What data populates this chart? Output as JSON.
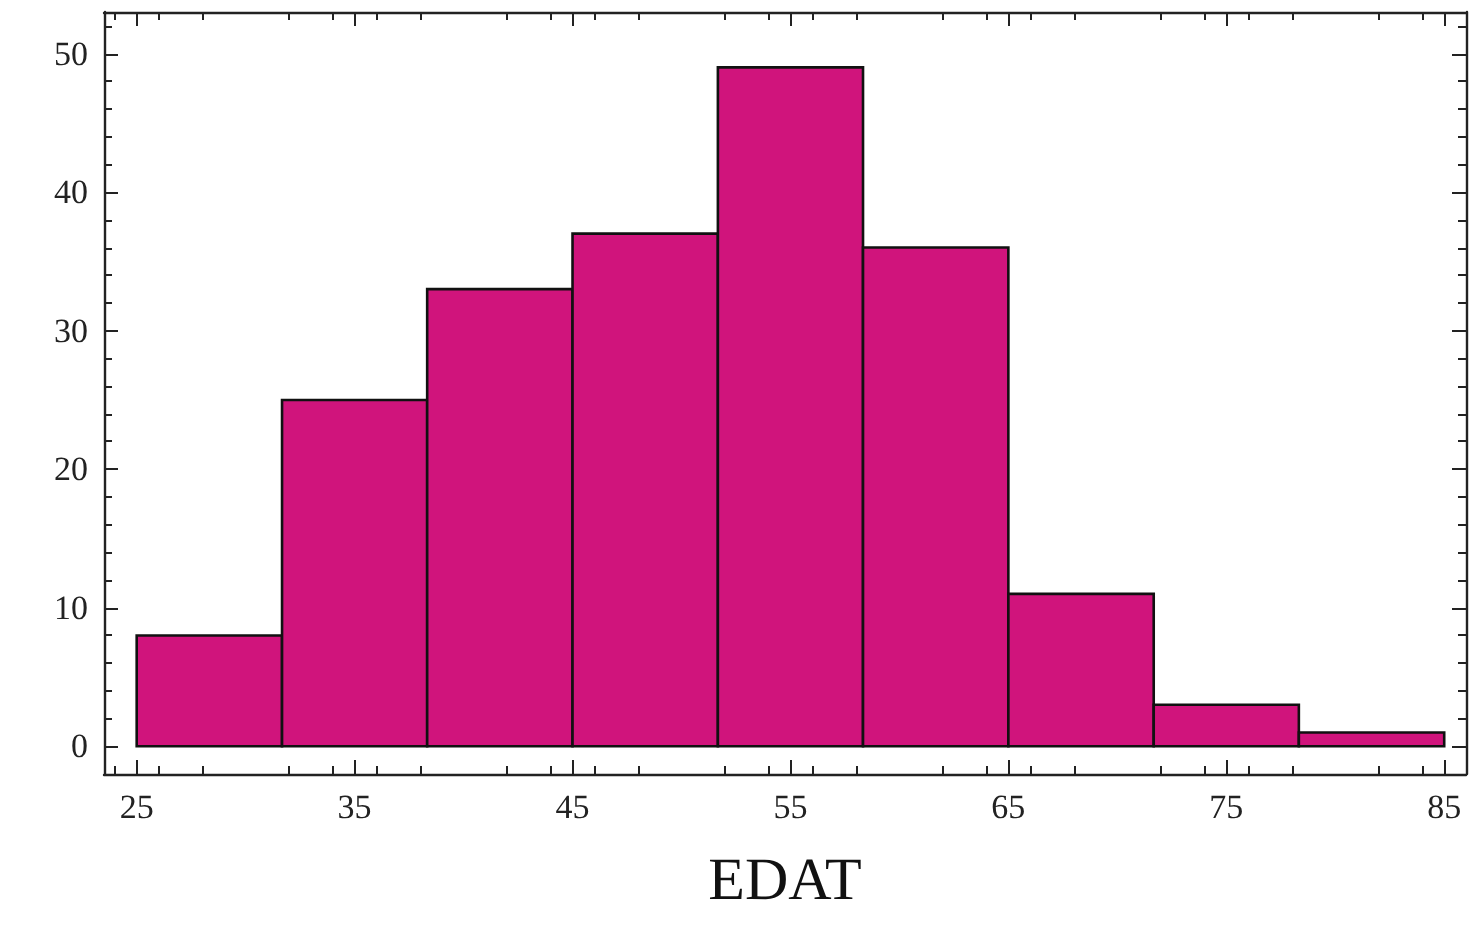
{
  "chart_data": {
    "type": "histogram",
    "xlabel": "EDAT",
    "bins": [
      25,
      31.67,
      38.33,
      45,
      51.67,
      58.33,
      65,
      71.67,
      78.33,
      85
    ],
    "values": [
      8,
      25,
      33,
      37,
      49,
      36,
      11,
      3,
      1
    ],
    "color": "#d0147c",
    "xlim": [
      23.5,
      86
    ],
    "xticks": [
      25,
      35,
      45,
      55,
      65,
      75,
      85
    ],
    "ylim": [
      -2,
      53
    ],
    "yticks": [
      0,
      10,
      20,
      30,
      40,
      50
    ],
    "grid": false
  }
}
